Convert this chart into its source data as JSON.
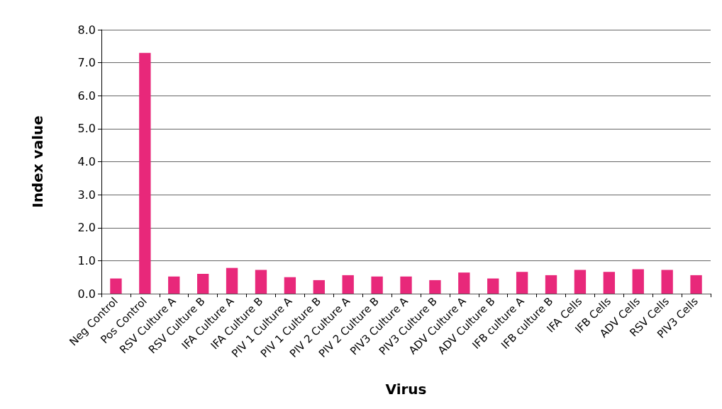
{
  "chart_data": {
    "type": "bar",
    "xlabel": "Virus",
    "ylabel": "Index value",
    "categories": [
      "Neg Control",
      "Pos Control",
      "RSV Culture A",
      "RSV Culture B",
      "IFA Culture A",
      "IFA Culture B",
      "PIV 1 Culture A",
      "PIV 1 Culture B",
      "PIV 2 Culture A",
      "PIV 2 Culture B",
      "PIV3 Culture A",
      "PIV3 Culture B",
      "ADV Culture A",
      "ADV Culture B",
      "IFB culture A",
      "IFB culture B",
      "IFA Cells",
      "IFB Cells",
      "ADV Cells",
      "RSV Cells",
      "PIV3 Cells"
    ],
    "values": [
      0.46,
      7.3,
      0.52,
      0.6,
      0.78,
      0.72,
      0.5,
      0.41,
      0.56,
      0.52,
      0.52,
      0.41,
      0.64,
      0.46,
      0.66,
      0.56,
      0.72,
      0.66,
      0.74,
      0.72,
      0.56
    ],
    "color": "#e8287a",
    "ylim": [
      0,
      8
    ],
    "yticks": [
      {
        "value": 0,
        "label": "0.0"
      },
      {
        "value": 1,
        "label": "1.0"
      },
      {
        "value": 2,
        "label": "2.0"
      },
      {
        "value": 3,
        "label": "3.0"
      },
      {
        "value": 4,
        "label": "4.0"
      },
      {
        "value": 5,
        "label": "5.0"
      },
      {
        "value": 6,
        "label": "6.0"
      },
      {
        "value": 7,
        "label": "7.0"
      },
      {
        "value": 8,
        "label": "8.0"
      }
    ],
    "grid": "y"
  }
}
